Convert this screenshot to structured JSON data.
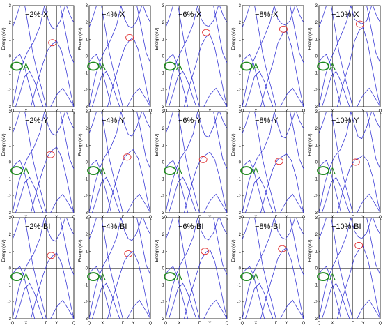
{
  "chart_data": {
    "type": "line",
    "grid": {
      "rows": 3,
      "cols": 5
    },
    "ylabel": "Energy (eV)",
    "ylim": [
      -3,
      3
    ],
    "yticks": [
      "-3",
      "-2",
      "-1",
      "0",
      "1",
      "2",
      "3"
    ],
    "kpath_labels": [
      "Q",
      "X",
      "Γ",
      "Y",
      "Q"
    ],
    "kpath_positions": [
      0,
      0.22,
      0.55,
      0.72,
      1.0
    ],
    "annotation_label": "A",
    "colors": {
      "bands": "#3a3ad6",
      "green_marker": "#1f8a1f",
      "red_marker": "#e03030",
      "axes": "#000000"
    },
    "panels": [
      {
        "title": "−2%-X",
        "red_x": 0.65,
        "red_y": 0.8,
        "green_y": -0.6,
        "shift": 0.0
      },
      {
        "title": "−4%-X",
        "red_x": 0.66,
        "red_y": 1.1,
        "green_y": -0.6,
        "shift": 0.2
      },
      {
        "title": "−6%-X",
        "red_x": 0.66,
        "red_y": 1.4,
        "green_y": -0.6,
        "shift": 0.4
      },
      {
        "title": "−8%-X",
        "red_x": 0.67,
        "red_y": 1.6,
        "green_y": -0.6,
        "shift": 0.6
      },
      {
        "title": "−10%-X",
        "red_x": 0.67,
        "red_y": 1.9,
        "green_y": -0.6,
        "shift": 0.8
      },
      {
        "title": "−2%-Y",
        "red_x": 0.62,
        "red_y": 0.45,
        "green_y": -0.5,
        "shift": 0.0
      },
      {
        "title": "−4%-Y",
        "red_x": 0.62,
        "red_y": 0.3,
        "green_y": -0.5,
        "shift": -0.15
      },
      {
        "title": "−6%-Y",
        "red_x": 0.61,
        "red_y": 0.15,
        "green_y": -0.5,
        "shift": -0.3
      },
      {
        "title": "−8%-Y",
        "red_x": 0.6,
        "red_y": 0.05,
        "green_y": -0.5,
        "shift": -0.4
      },
      {
        "title": "−10%-Y",
        "red_x": 0.6,
        "red_y": 0.0,
        "green_y": -0.5,
        "shift": -0.5
      },
      {
        "title": "−2%-BI",
        "red_x": 0.63,
        "red_y": 0.75,
        "green_y": -0.5,
        "shift": 0.0
      },
      {
        "title": "−4%-BI",
        "red_x": 0.64,
        "red_y": 0.85,
        "green_y": -0.5,
        "shift": 0.1
      },
      {
        "title": "−6%-BI",
        "red_x": 0.64,
        "red_y": 1.0,
        "green_y": -0.5,
        "shift": 0.2
      },
      {
        "title": "−8%-BI",
        "red_x": 0.65,
        "red_y": 1.15,
        "green_y": -0.5,
        "shift": 0.3
      },
      {
        "title": "−10%-BI",
        "red_x": 0.65,
        "red_y": 1.35,
        "green_y": -0.5,
        "shift": 0.4
      }
    ]
  }
}
